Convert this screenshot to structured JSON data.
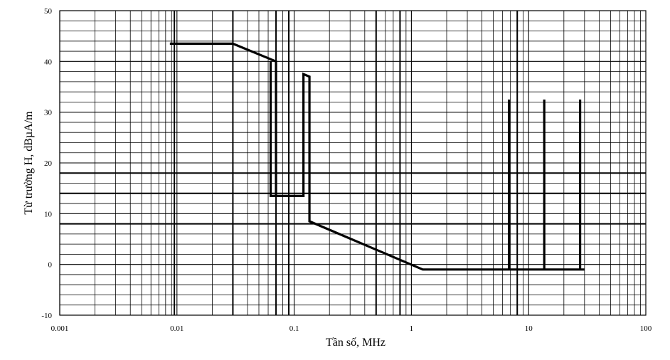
{
  "chart_data": {
    "type": "line",
    "title": "",
    "xlabel": "Tần số, MHz",
    "ylabel": "Từ trường H, dBµA/m",
    "xscale": "log",
    "xlim": [
      0.001,
      100
    ],
    "ylim": [
      -10,
      50
    ],
    "xticks": [
      {
        "value": 0.001,
        "label": "0.001"
      },
      {
        "value": 0.01,
        "label": "0.01"
      },
      {
        "value": 0.1,
        "label": "0.1"
      },
      {
        "value": 1,
        "label": "1"
      },
      {
        "value": 10,
        "label": "10"
      },
      {
        "value": 100,
        "label": "100"
      }
    ],
    "yticks": [
      {
        "value": -10,
        "label": "-10"
      },
      {
        "value": 0,
        "label": "0"
      },
      {
        "value": 10,
        "label": "10"
      },
      {
        "value": 20,
        "label": "20"
      },
      {
        "value": 30,
        "label": "30"
      },
      {
        "value": 40,
        "label": "40"
      },
      {
        "value": 50,
        "label": "50"
      }
    ],
    "grid": true,
    "y_minor_step": 2,
    "horizontal_reference_lines": [
      8,
      14,
      18
    ],
    "vertical_reference_lines": [
      0.0095,
      0.03,
      0.07,
      0.09,
      0.5,
      0.8,
      8
    ],
    "series": [
      {
        "segments": [
          {
            "x": [
              0.0087,
              0.03,
              0.07,
              0.07,
              0.063,
              0.063
            ],
            "y": [
              43.5,
              43.5,
              40,
              13.5,
              13.5,
              40
            ]
          },
          {
            "x": [
              0.07,
              0.12,
              0.12,
              0.12,
              0.135,
              0.135,
              0.135,
              1.25,
              30
            ],
            "y": [
              13.5,
              13.5,
              37.5,
              37.5,
              37,
              8.5,
              8.5,
              -1,
              -1
            ]
          },
          {
            "x": [
              6.8,
              6.8
            ],
            "y": [
              -1,
              32.5
            ]
          },
          {
            "x": [
              13.6,
              13.6
            ],
            "y": [
              -1,
              32.5
            ]
          },
          {
            "x": [
              27.5,
              27.5
            ],
            "y": [
              -1,
              32.5
            ]
          }
        ]
      }
    ]
  }
}
